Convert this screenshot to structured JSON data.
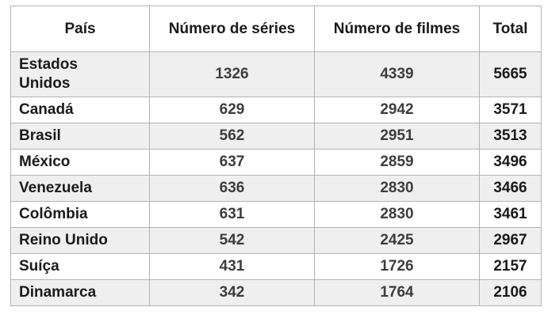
{
  "chart_data": {
    "type": "table",
    "columns": [
      "País",
      "Número de séries",
      "Número de filmes",
      "Total"
    ],
    "rows": [
      [
        "Estados\nUnidos",
        "1326",
        "4339",
        "5665"
      ],
      [
        "Canadá",
        "629",
        "2942",
        "3571"
      ],
      [
        "Brasil",
        "562",
        "2951",
        "3513"
      ],
      [
        "México",
        "637",
        "2859",
        "3496"
      ],
      [
        "Venezuela",
        "636",
        "2830",
        "3466"
      ],
      [
        "Colômbia",
        "631",
        "2830",
        "3461"
      ],
      [
        "Reino Unido",
        "542",
        "2425",
        "2967"
      ],
      [
        "Suíça",
        "431",
        "1726",
        "2157"
      ],
      [
        "Dinamarca",
        "342",
        "1764",
        "2106"
      ]
    ],
    "layout": {
      "striped_rows": true,
      "grid": true,
      "header_position": "top"
    }
  },
  "colors": {
    "stripe": "#efefef",
    "border": "#b3b3b3",
    "text_strong": "#1a1a1a",
    "text_value": "#3d3d3d",
    "page_background": "#ffffff"
  }
}
